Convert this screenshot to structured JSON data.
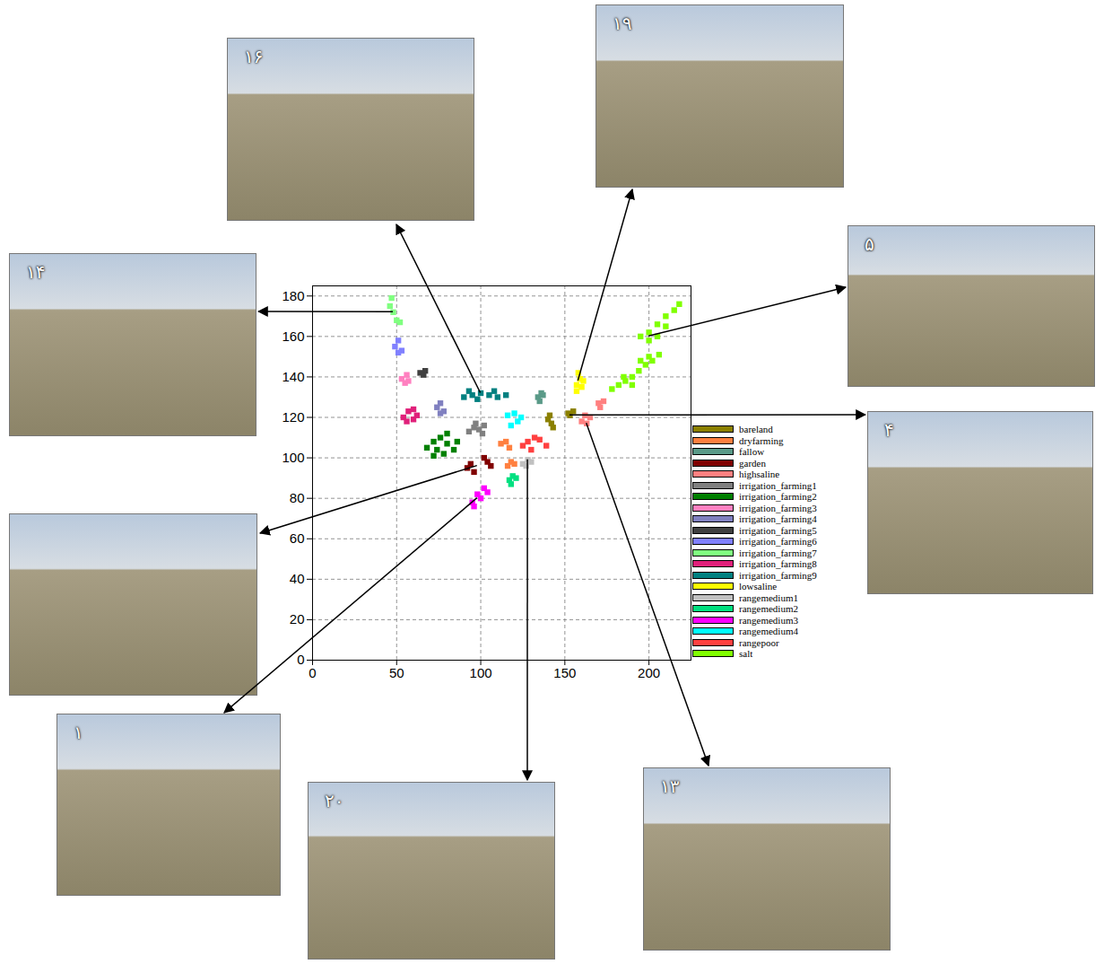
{
  "chart_data": {
    "type": "scatter",
    "xlim": [
      0,
      225
    ],
    "ylim": [
      0,
      185
    ],
    "xticks": [
      0,
      50,
      100,
      150,
      200
    ],
    "yticks": [
      0,
      20,
      40,
      60,
      80,
      100,
      120,
      140,
      160,
      180
    ],
    "grid": true,
    "legend": "right",
    "marker": "square",
    "series": [
      {
        "name": "bareland",
        "color": "#8b8000",
        "values": [
          [
            140,
            119
          ],
          [
            142,
            117
          ],
          [
            141,
            121
          ],
          [
            152,
            122
          ],
          [
            155,
            123
          ],
          [
            153,
            121
          ],
          [
            143,
            115
          ]
        ]
      },
      {
        "name": "dryfarming",
        "color": "#ff8040",
        "values": [
          [
            112,
            107
          ],
          [
            115,
            108
          ],
          [
            117,
            105
          ],
          [
            118,
            98
          ],
          [
            120,
            97
          ],
          [
            116,
            96
          ]
        ]
      },
      {
        "name": "fallow",
        "color": "#5a9a88",
        "values": [
          [
            134,
            130
          ],
          [
            136,
            132
          ],
          [
            135,
            128
          ],
          [
            137,
            131
          ]
        ]
      },
      {
        "name": "garden",
        "color": "#800000",
        "values": [
          [
            92,
            95
          ],
          [
            94,
            97
          ],
          [
            96,
            93
          ],
          [
            104,
            98
          ],
          [
            106,
            96
          ],
          [
            102,
            100
          ]
        ]
      },
      {
        "name": "highsaline",
        "color": "#ff8080",
        "values": [
          [
            160,
            118
          ],
          [
            163,
            117
          ],
          [
            165,
            120
          ],
          [
            162,
            121
          ],
          [
            170,
            127
          ],
          [
            173,
            128
          ],
          [
            171,
            125
          ]
        ]
      },
      {
        "name": "irrigation_farming1",
        "color": "#808080",
        "values": [
          [
            93,
            113
          ],
          [
            96,
            115
          ],
          [
            99,
            114
          ],
          [
            102,
            116
          ],
          [
            97,
            117
          ],
          [
            101,
            112
          ]
        ]
      },
      {
        "name": "irrigation_farming2",
        "color": "#008000",
        "values": [
          [
            68,
            105
          ],
          [
            72,
            108
          ],
          [
            76,
            110
          ],
          [
            80,
            107
          ],
          [
            84,
            104
          ],
          [
            78,
            102
          ],
          [
            72,
            101
          ],
          [
            80,
            112
          ],
          [
            86,
            108
          ],
          [
            74,
            104
          ]
        ]
      },
      {
        "name": "irrigation_farming3",
        "color": "#ff80c0",
        "values": [
          [
            53,
            139
          ],
          [
            56,
            141
          ],
          [
            55,
            137
          ],
          [
            57,
            138
          ]
        ]
      },
      {
        "name": "irrigation_farming4",
        "color": "#8080c0",
        "values": [
          [
            74,
            125
          ],
          [
            76,
            127
          ],
          [
            78,
            123
          ],
          [
            76,
            122
          ]
        ]
      },
      {
        "name": "irrigation_farming5",
        "color": "#404040",
        "values": [
          [
            64,
            142
          ],
          [
            67,
            143
          ],
          [
            66,
            141
          ]
        ]
      },
      {
        "name": "irrigation_farming6",
        "color": "#8080ff",
        "values": [
          [
            49,
            155
          ],
          [
            51,
            158
          ],
          [
            53,
            153
          ],
          [
            51,
            152
          ]
        ]
      },
      {
        "name": "irrigation_farming7",
        "color": "#80ff80",
        "values": [
          [
            46,
            175
          ],
          [
            47,
            179
          ],
          [
            48,
            172
          ],
          [
            50,
            168
          ],
          [
            52,
            167
          ]
        ]
      },
      {
        "name": "irrigation_farming8",
        "color": "#e0207a",
        "values": [
          [
            54,
            120
          ],
          [
            57,
            123
          ],
          [
            60,
            124
          ],
          [
            62,
            121
          ],
          [
            56,
            118
          ],
          [
            60,
            119
          ]
        ]
      },
      {
        "name": "irrigation_farming9",
        "color": "#008080",
        "values": [
          [
            90,
            130
          ],
          [
            95,
            131
          ],
          [
            100,
            132
          ],
          [
            105,
            131
          ],
          [
            110,
            130
          ],
          [
            115,
            131
          ],
          [
            98,
            129
          ],
          [
            108,
            133
          ],
          [
            93,
            133
          ]
        ]
      },
      {
        "name": "lowsaline",
        "color": "#ffff00",
        "values": [
          [
            157,
            136
          ],
          [
            160,
            135
          ],
          [
            159,
            139
          ],
          [
            158,
            142
          ],
          [
            161,
            138
          ],
          [
            157,
            133
          ]
        ]
      },
      {
        "name": "rangemedium1",
        "color": "#c0c0c0",
        "values": [
          [
            125,
            97
          ],
          [
            128,
            99
          ],
          [
            130,
            98
          ],
          [
            127,
            96
          ]
        ]
      },
      {
        "name": "rangemedium2",
        "color": "#00e080",
        "values": [
          [
            117,
            89
          ],
          [
            119,
            91
          ],
          [
            121,
            90
          ],
          [
            118,
            87
          ]
        ]
      },
      {
        "name": "rangemedium3",
        "color": "#ff00ff",
        "values": [
          [
            95,
            78
          ],
          [
            98,
            82
          ],
          [
            102,
            85
          ],
          [
            100,
            80
          ],
          [
            104,
            83
          ],
          [
            96,
            76
          ]
        ]
      },
      {
        "name": "rangemedium4",
        "color": "#00ffff",
        "values": [
          [
            116,
            121
          ],
          [
            120,
            122
          ],
          [
            122,
            118
          ],
          [
            118,
            116
          ],
          [
            124,
            120
          ]
        ]
      },
      {
        "name": "rangepoor",
        "color": "#ff4040",
        "values": [
          [
            125,
            106
          ],
          [
            128,
            108
          ],
          [
            132,
            110
          ],
          [
            130,
            104
          ],
          [
            135,
            109
          ],
          [
            139,
            106
          ]
        ]
      },
      {
        "name": "salt",
        "color": "#80ff00",
        "values": [
          [
            178,
            134
          ],
          [
            182,
            136
          ],
          [
            186,
            138
          ],
          [
            190,
            140
          ],
          [
            194,
            143
          ],
          [
            198,
            146
          ],
          [
            202,
            148
          ],
          [
            206,
            151
          ],
          [
            185,
            140
          ],
          [
            195,
            148
          ],
          [
            200,
            150
          ],
          [
            190,
            136
          ],
          [
            195,
            160
          ],
          [
            200,
            162
          ],
          [
            205,
            166
          ],
          [
            210,
            170
          ],
          [
            215,
            173
          ],
          [
            218,
            176
          ],
          [
            200,
            158
          ],
          [
            210,
            165
          ],
          [
            205,
            160
          ]
        ]
      }
    ],
    "photos": [
      {
        "label": "۱۴",
        "target": [
          48,
          172
        ]
      },
      {
        "label": "۱۶",
        "target": [
          100,
          132
        ]
      },
      {
        "label": "۱۹",
        "target": [
          158,
          138
        ]
      },
      {
        "label": "۵",
        "target": [
          200,
          160
        ]
      },
      {
        "label": "۴",
        "target": [
          153,
          121
        ]
      },
      {
        "label": null,
        "target": [
          98,
          96
        ]
      },
      {
        "label": "۱",
        "target": [
          98,
          80
        ]
      },
      {
        "label": "۲۰",
        "target": [
          128,
          99
        ]
      },
      {
        "label": "۱۳",
        "target": [
          163,
          117
        ]
      }
    ]
  }
}
